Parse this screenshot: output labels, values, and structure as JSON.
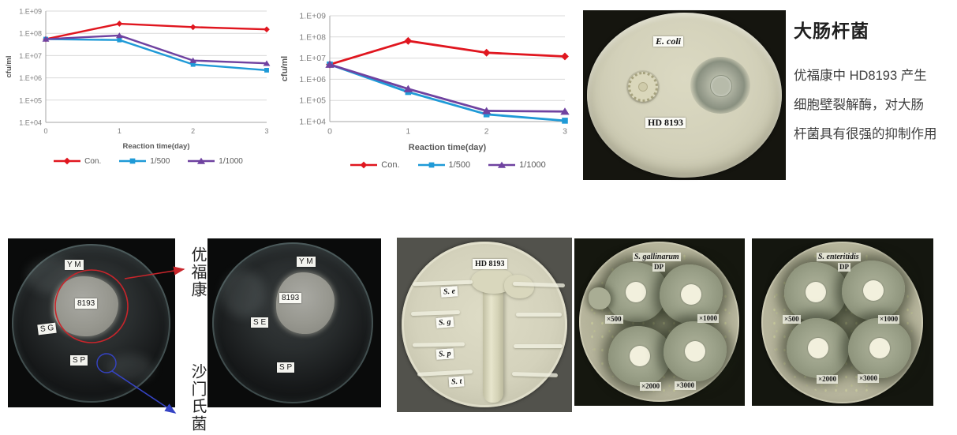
{
  "chart_data": [
    {
      "type": "line",
      "xlabel": "Reaction time(day)",
      "ylabel": "cfu/ml",
      "x": [
        0,
        1,
        2,
        3
      ],
      "xtick_labels": [
        "0",
        "1",
        "2",
        "3"
      ],
      "ytick_labels": [
        "1.E+09",
        "1.E+08",
        "1.E+07",
        "1.E+06",
        "1.E+05",
        "1.E+04"
      ],
      "y_scale": "log",
      "y_exp_range": [
        4,
        9
      ],
      "grid": true,
      "legend_position": "bottom",
      "series": [
        {
          "name": "Con.",
          "color": "#e0161f",
          "marker": "diamond",
          "values": [
            55000000.0,
            270000000.0,
            190000000.0,
            150000000.0
          ]
        },
        {
          "name": "1/500",
          "color": "#1f9ad7",
          "marker": "square",
          "values": [
            55000000.0,
            50000000.0,
            4000000.0,
            2200000.0
          ]
        },
        {
          "name": "1/1000",
          "color": "#6f42a0",
          "marker": "triangle",
          "values": [
            55000000.0,
            80000000.0,
            6000000.0,
            4500000.0
          ]
        }
      ]
    },
    {
      "type": "line",
      "xlabel": "Reaction time(day)",
      "ylabel": "cfu/ml",
      "x": [
        0,
        1,
        2,
        3
      ],
      "xtick_labels": [
        "0",
        "1",
        "2",
        "3"
      ],
      "ytick_labels": [
        "1.E+09",
        "1.E+08",
        "1.E+07",
        "1.E+06",
        "1.E+05",
        "1.E+04"
      ],
      "y_scale": "log",
      "y_exp_range": [
        4,
        9
      ],
      "grid": true,
      "legend_position": "bottom",
      "series": [
        {
          "name": "Con.",
          "color": "#e0161f",
          "marker": "diamond",
          "values": [
            5000000.0,
            65000000.0,
            18000000.0,
            12000000.0
          ]
        },
        {
          "name": "1/500",
          "color": "#1f9ad7",
          "marker": "square",
          "values": [
            5000000.0,
            250000.0,
            22000.0,
            11000.0
          ]
        },
        {
          "name": "1/1000",
          "color": "#6f42a0",
          "marker": "triangle",
          "values": [
            5000000.0,
            350000.0,
            32000.0,
            30000.0
          ]
        }
      ]
    }
  ],
  "ecoli_photo": {
    "top_label": "E. coli",
    "bottom_label": "HD 8193"
  },
  "text_panel": {
    "title": "大肠杆菌",
    "lines": [
      "优福康中 HD8193 产生",
      "细胞壁裂解酶，对大肠",
      "杆菌具有很强的抑制作用"
    ]
  },
  "annotations": {
    "top": "优福康",
    "bottom": "沙门氏菌"
  },
  "dish1": {
    "ym": "Y M",
    "strain": "8193",
    "sg": "S G",
    "sp": "S P"
  },
  "dish2": {
    "ym": "Y M",
    "strain": "8193",
    "se": "S E",
    "sp": "S P"
  },
  "dish3": {
    "hd": "HD 8193",
    "rows": [
      "S. e",
      "S. g",
      "S. p",
      "S. t"
    ]
  },
  "dish4": {
    "species": "S. gallinarum",
    "dp": "DP",
    "dilutions": [
      "×500",
      "×1000",
      "×2000",
      "×3000"
    ]
  },
  "dish5": {
    "species": "S. enteritidis",
    "dp": "DP",
    "dilutions": [
      "×500",
      "×1000",
      "×2000",
      "×3000"
    ]
  }
}
